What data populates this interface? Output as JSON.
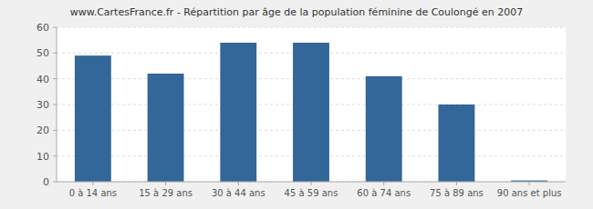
{
  "chart_data": {
    "type": "bar",
    "title": "www.CartesFrance.fr - Répartition par âge de la population féminine de Coulongé en 2007",
    "categories": [
      "0 à 14 ans",
      "15 à 29 ans",
      "30 à 44 ans",
      "45 à 59 ans",
      "60 à 74 ans",
      "75 à 89 ans",
      "90 ans et plus"
    ],
    "values": [
      49,
      42,
      54,
      54,
      41,
      30,
      0.5
    ],
    "color": "#336699",
    "ylim": [
      0,
      60
    ],
    "yticks": [
      0,
      10,
      20,
      30,
      40,
      50,
      60
    ],
    "grid": true
  }
}
